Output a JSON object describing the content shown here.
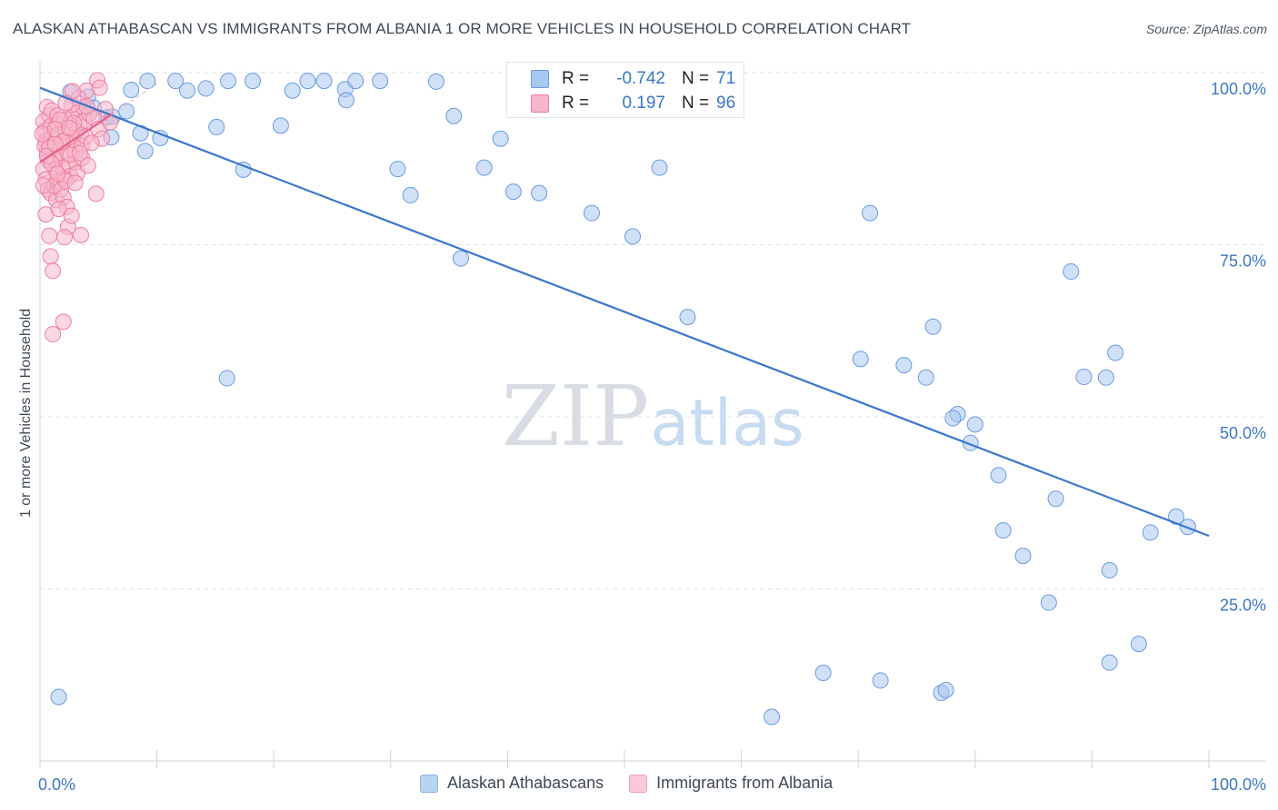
{
  "title": "ALASKAN ATHABASCAN VS IMMIGRANTS FROM ALBANIA 1 OR MORE VEHICLES IN HOUSEHOLD CORRELATION CHART",
  "source": "Source: ZipAtlas.com",
  "watermark": {
    "zip": "ZIP",
    "atlas": "atlas"
  },
  "colors": {
    "blue_fill": "#a9c8f0",
    "blue_stroke": "#6b9be0",
    "blue_line": "#3a76cc",
    "pink_fill": "#f7b6ca",
    "pink_stroke": "#ec7fa0",
    "pink_line": "#e4628b",
    "grid": "#dfe3e8",
    "tick_text": "#3b78c4"
  },
  "stats": [
    {
      "r_label": "R =",
      "r_value": "-0.742",
      "n_label": "N =",
      "n_value": "71"
    },
    {
      "r_label": "R =",
      "r_value": "0.197",
      "n_label": "N =",
      "n_value": "96"
    }
  ],
  "chart_data": {
    "type": "scatter",
    "title": "ALASKAN ATHABASCAN VS IMMIGRANTS FROM ALBANIA 1 OR MORE VEHICLES IN HOUSEHOLD CORRELATION CHART",
    "xlabel": "",
    "ylabel": "1 or more Vehicles in Household",
    "xlim": [
      0,
      100
    ],
    "ylim": [
      0,
      100
    ],
    "x_tick_labels": [
      "0.0%",
      "100.0%"
    ],
    "y_ticks": [
      25,
      50,
      75,
      100
    ],
    "y_tick_labels": [
      "25.0%",
      "50.0%",
      "75.0%",
      "100.0%"
    ],
    "grid": true,
    "legend_position": "bottom",
    "series": [
      {
        "name": "Alaskan Athabascans",
        "r": -0.742,
        "n": 71,
        "trendline": {
          "x": [
            0,
            100
          ],
          "y": [
            97.8,
            32.7
          ]
        },
        "points": [
          [
            2.6,
            97.2
          ],
          [
            4.1,
            96.5
          ],
          [
            4.6,
            94.9
          ],
          [
            5.7,
            93.5
          ],
          [
            6.2,
            93.6
          ],
          [
            7.4,
            94.4
          ],
          [
            9.2,
            98.8
          ],
          [
            11.6,
            98.8
          ],
          [
            12.6,
            97.4
          ],
          [
            14.2,
            97.7
          ],
          [
            16.1,
            98.8
          ],
          [
            18.2,
            98.8
          ],
          [
            20.6,
            92.3
          ],
          [
            22.9,
            98.8
          ],
          [
            24.3,
            98.8
          ],
          [
            26.1,
            97.6
          ],
          [
            27.0,
            98.8
          ],
          [
            29.1,
            98.8
          ],
          [
            33.9,
            98.7
          ],
          [
            39.4,
            90.4
          ],
          [
            8.6,
            91.2
          ],
          [
            6.1,
            90.6
          ],
          [
            9.0,
            88.6
          ],
          [
            10.3,
            90.5
          ],
          [
            15.1,
            92.1
          ],
          [
            17.4,
            85.9
          ],
          [
            35.4,
            93.7
          ],
          [
            30.6,
            86.0
          ],
          [
            31.7,
            82.2
          ],
          [
            38.0,
            86.2
          ],
          [
            40.5,
            82.7
          ],
          [
            42.7,
            82.5
          ],
          [
            47.2,
            79.6
          ],
          [
            50.7,
            76.2
          ],
          [
            53.0,
            86.2
          ],
          [
            36.0,
            73.0
          ],
          [
            55.4,
            64.5
          ],
          [
            71.0,
            79.6
          ],
          [
            76.4,
            63.1
          ],
          [
            80.0,
            48.9
          ],
          [
            88.2,
            71.1
          ],
          [
            70.2,
            58.4
          ],
          [
            75.8,
            55.7
          ],
          [
            73.9,
            57.5
          ],
          [
            78.5,
            50.4
          ],
          [
            82.0,
            41.5
          ],
          [
            89.3,
            55.8
          ],
          [
            92.0,
            59.3
          ],
          [
            98.2,
            34.0
          ],
          [
            91.2,
            55.7
          ],
          [
            79.6,
            46.2
          ],
          [
            86.9,
            38.1
          ],
          [
            78.1,
            49.8
          ],
          [
            82.4,
            33.5
          ],
          [
            84.1,
            29.8
          ],
          [
            86.3,
            23.0
          ],
          [
            91.5,
            27.7
          ],
          [
            95.0,
            33.2
          ],
          [
            97.2,
            35.5
          ],
          [
            94.0,
            17.0
          ],
          [
            91.5,
            14.3
          ],
          [
            77.1,
            9.9
          ],
          [
            67.0,
            12.8
          ],
          [
            71.9,
            11.7
          ],
          [
            77.5,
            10.3
          ],
          [
            16.0,
            55.6
          ],
          [
            1.6,
            9.3
          ],
          [
            62.6,
            6.4
          ],
          [
            7.8,
            97.5
          ],
          [
            21.6,
            97.4
          ],
          [
            26.2,
            96.0
          ]
        ]
      },
      {
        "name": "Immigrants from Albania",
        "r": 0.197,
        "n": 96,
        "trendline": {
          "x": [
            0,
            6.2
          ],
          "y": [
            87.0,
            94.0
          ]
        },
        "points": [
          [
            0.3,
            92.9
          ],
          [
            0.4,
            91.5
          ],
          [
            0.5,
            90.1
          ],
          [
            0.6,
            88.7
          ],
          [
            0.7,
            87.3
          ],
          [
            0.8,
            93.8
          ],
          [
            0.9,
            92.2
          ],
          [
            1.0,
            90.6
          ],
          [
            1.1,
            89.0
          ],
          [
            1.2,
            87.4
          ],
          [
            1.3,
            85.8
          ],
          [
            1.4,
            84.2
          ],
          [
            1.5,
            92.6
          ],
          [
            1.6,
            91.0
          ],
          [
            1.7,
            89.4
          ],
          [
            1.8,
            87.8
          ],
          [
            1.9,
            86.2
          ],
          [
            2.0,
            84.6
          ],
          [
            2.1,
            93.0
          ],
          [
            2.2,
            91.4
          ],
          [
            2.3,
            89.8
          ],
          [
            2.4,
            88.2
          ],
          [
            2.5,
            86.6
          ],
          [
            2.6,
            85.0
          ],
          [
            2.7,
            93.4
          ],
          [
            2.8,
            91.8
          ],
          [
            2.9,
            90.2
          ],
          [
            3.0,
            88.6
          ],
          [
            3.1,
            87.0
          ],
          [
            3.2,
            85.4
          ],
          [
            3.3,
            94.2
          ],
          [
            3.4,
            92.6
          ],
          [
            3.5,
            91.0
          ],
          [
            3.6,
            89.4
          ],
          [
            3.7,
            95.0
          ],
          [
            3.8,
            93.0
          ],
          [
            0.3,
            86.0
          ],
          [
            0.5,
            84.5
          ],
          [
            0.7,
            83.0
          ],
          [
            0.9,
            82.5
          ],
          [
            1.2,
            83.5
          ],
          [
            1.4,
            81.5
          ],
          [
            1.8,
            83.0
          ],
          [
            2.0,
            81.9
          ],
          [
            2.3,
            80.5
          ],
          [
            0.5,
            79.4
          ],
          [
            1.6,
            80.2
          ],
          [
            2.4,
            77.6
          ],
          [
            0.8,
            76.3
          ],
          [
            2.1,
            76.1
          ],
          [
            3.5,
            76.4
          ],
          [
            0.9,
            73.3
          ],
          [
            1.1,
            71.2
          ],
          [
            1.1,
            62.0
          ],
          [
            2.0,
            63.8
          ],
          [
            4.0,
            97.4
          ],
          [
            4.2,
            94.0
          ],
          [
            4.6,
            93.4
          ],
          [
            5.0,
            91.8
          ],
          [
            5.3,
            90.4
          ],
          [
            4.9,
            98.9
          ],
          [
            5.1,
            97.8
          ],
          [
            2.7,
            95.3
          ],
          [
            3.3,
            96.3
          ],
          [
            4.0,
            95.1
          ],
          [
            0.6,
            95.0
          ],
          [
            1.0,
            94.5
          ],
          [
            1.5,
            93.8
          ],
          [
            2.8,
            97.3
          ],
          [
            4.8,
            82.4
          ],
          [
            3.1,
            91.5
          ],
          [
            2.6,
            88.1
          ],
          [
            0.4,
            89.4
          ],
          [
            1.7,
            93.2
          ],
          [
            2.2,
            95.6
          ],
          [
            3.9,
            90.7
          ],
          [
            0.2,
            91.1
          ],
          [
            0.8,
            89.1
          ],
          [
            1.3,
            91.8
          ],
          [
            2.9,
            92.7
          ],
          [
            3.6,
            87.6
          ],
          [
            4.4,
            89.8
          ],
          [
            5.6,
            94.7
          ],
          [
            6.0,
            92.8
          ],
          [
            0.6,
            87.9
          ],
          [
            1.9,
            90.0
          ],
          [
            2.5,
            92.0
          ],
          [
            3.4,
            88.3
          ],
          [
            1.0,
            86.8
          ],
          [
            2.2,
            84.3
          ],
          [
            0.3,
            83.6
          ],
          [
            1.5,
            85.3
          ],
          [
            3.0,
            84.0
          ],
          [
            4.1,
            86.5
          ],
          [
            2.7,
            79.2
          ],
          [
            1.3,
            89.6
          ]
        ]
      }
    ]
  }
}
